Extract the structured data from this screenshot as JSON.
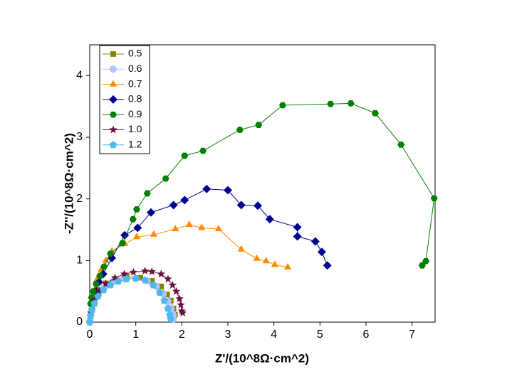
{
  "chart_data": {
    "type": "scatter",
    "x_label": "Z'/(10^8Ω·cm^2)",
    "y_label": "-Z''/(10^8Ω·cm^2)",
    "xlim": [
      0,
      7.5
    ],
    "xticks": [
      0,
      1,
      2,
      3,
      4,
      5,
      6,
      7
    ],
    "ylim": [
      0,
      4.5
    ],
    "yticks": [
      0,
      1,
      2,
      3,
      4
    ],
    "legend": "upper left",
    "series": [
      {
        "name": "0.5",
        "color": "#808000",
        "marker": "square",
        "x": [
          0.02,
          0.05,
          0.1,
          0.2,
          0.35,
          0.55,
          0.8,
          1.1,
          1.35,
          1.55,
          1.68,
          1.76,
          1.82,
          1.85
        ],
        "values": [
          0.1,
          0.25,
          0.38,
          0.52,
          0.63,
          0.7,
          0.74,
          0.72,
          0.67,
          0.58,
          0.45,
          0.35,
          0.22,
          0.12
        ]
      },
      {
        "name": "0.6",
        "color": "#b4c4ff",
        "marker": "circle",
        "x": [
          0.01,
          0.04,
          0.09,
          0.18,
          0.32,
          0.5,
          0.75,
          1.0,
          1.25,
          1.45,
          1.6,
          1.7,
          1.77,
          1.81,
          1.82
        ],
        "values": [
          0.05,
          0.2,
          0.33,
          0.47,
          0.58,
          0.66,
          0.7,
          0.71,
          0.67,
          0.58,
          0.46,
          0.34,
          0.22,
          0.12,
          0.05
        ]
      },
      {
        "name": "0.7",
        "color": "#ff8c00",
        "marker": "triangle",
        "x": [
          0.03,
          0.08,
          0.15,
          0.25,
          0.35,
          0.48,
          0.76,
          1.02,
          1.39,
          1.86,
          2.16,
          2.43,
          2.8,
          3.29,
          3.63,
          3.83,
          4.02,
          4.3
        ],
        "values": [
          0.3,
          0.5,
          0.68,
          0.85,
          1.0,
          1.15,
          1.27,
          1.38,
          1.42,
          1.51,
          1.58,
          1.53,
          1.51,
          1.18,
          1.03,
          0.99,
          0.93,
          0.89
        ]
      },
      {
        "name": "0.8",
        "color": "#000090",
        "marker": "diamond",
        "x": [
          0.05,
          0.12,
          0.2,
          0.29,
          0.48,
          0.76,
          1.04,
          1.33,
          1.82,
          2.06,
          2.54,
          3.0,
          3.29,
          3.65,
          3.91,
          4.51,
          4.51,
          4.9,
          5.04,
          5.16
        ],
        "values": [
          0.3,
          0.5,
          0.65,
          0.78,
          1.04,
          1.41,
          1.53,
          1.78,
          1.9,
          1.98,
          2.16,
          2.14,
          1.9,
          1.89,
          1.67,
          1.54,
          1.39,
          1.31,
          1.14,
          0.92
        ]
      },
      {
        "name": "0.9",
        "color": "#008000",
        "marker": "hexagon",
        "x": [
          0.02,
          0.04,
          0.08,
          0.14,
          0.22,
          0.31,
          0.45,
          0.71,
          0.94,
          1.02,
          1.25,
          1.65,
          2.06,
          2.46,
          3.26,
          3.67,
          4.19,
          5.23,
          5.67,
          6.2,
          6.76,
          7.48,
          7.3,
          7.22
        ],
        "values": [
          0.3,
          0.4,
          0.5,
          0.62,
          0.75,
          0.9,
          1.11,
          1.28,
          1.67,
          1.83,
          2.09,
          2.33,
          2.7,
          2.78,
          3.12,
          3.2,
          3.52,
          3.54,
          3.55,
          3.39,
          2.88,
          2.01,
          0.99,
          0.92
        ]
      },
      {
        "name": "1.0",
        "color": "#6b1040",
        "marker": "star",
        "x": [
          0.03,
          0.1,
          0.2,
          0.35,
          0.55,
          0.75,
          0.95,
          1.2,
          1.35,
          1.55,
          1.7,
          1.8,
          1.88,
          1.95,
          1.98,
          2.0,
          2.02
        ],
        "values": [
          0.15,
          0.35,
          0.5,
          0.62,
          0.72,
          0.78,
          0.81,
          0.83,
          0.82,
          0.78,
          0.7,
          0.6,
          0.5,
          0.38,
          0.28,
          0.18,
          0.15
        ]
      },
      {
        "name": "1.2",
        "color": "#4fb8f0",
        "marker": "pentagon",
        "x": [
          0.0,
          0.02,
          0.05,
          0.1,
          0.18,
          0.3,
          0.45,
          0.62,
          0.8,
          1.0,
          1.2,
          1.38,
          1.52,
          1.62,
          1.7,
          1.74,
          1.76
        ],
        "values": [
          0.0,
          0.1,
          0.2,
          0.3,
          0.42,
          0.52,
          0.6,
          0.66,
          0.7,
          0.71,
          0.68,
          0.6,
          0.48,
          0.35,
          0.22,
          0.12,
          0.05
        ]
      }
    ]
  }
}
